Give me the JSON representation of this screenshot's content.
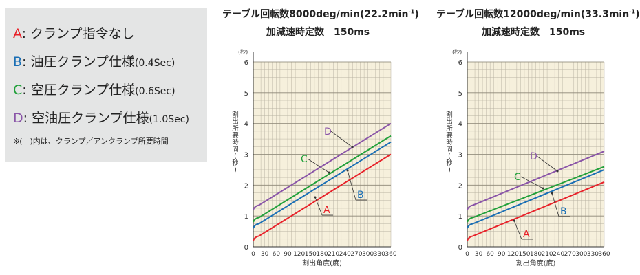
{
  "legend": {
    "items": [
      {
        "letter": "A",
        "text": ": クランプ指令なし",
        "spec": "",
        "color": "#e8222a"
      },
      {
        "letter": "B",
        "text": ": 油圧クランプ仕様",
        "spec": "(0.4Sec)",
        "color": "#1a6fb5"
      },
      {
        "letter": "C",
        "text": ": 空圧クランプ仕様",
        "spec": "(0.6Sec)",
        "color": "#21a03a"
      },
      {
        "letter": "D",
        "text": ": 空油圧クランプ仕様",
        "spec": "(1.0Sec)",
        "color": "#8a55a8"
      }
    ],
    "note": "※(　)内は、クランプ／アンクランプ所要時間"
  },
  "chart_data": [
    {
      "type": "line",
      "title_main": "テーブル回転数8000deg/min",
      "title_paren": "(22.2min",
      "title_sup": "-1",
      "title_close": ")",
      "subtitle": "加減速時定数　150ms",
      "xlabel": "割出角度(度)",
      "ylabel": "割出所要時間",
      "ylabel_unit": "(秒)",
      "y_unit_top": "(秒)",
      "xlim": [
        0,
        360
      ],
      "ylim": [
        0,
        6
      ],
      "xticks": [
        0,
        30,
        60,
        90,
        120,
        150,
        180,
        210,
        240,
        270,
        300,
        330,
        360
      ],
      "yticks": [
        0,
        1,
        2,
        3,
        4,
        5,
        6
      ],
      "grid": true,
      "series": [
        {
          "name": "A",
          "x": [
            0,
            15,
            360
          ],
          "values": [
            0.2,
            0.35,
            3.0
          ]
        },
        {
          "name": "B",
          "x": [
            0,
            15,
            360
          ],
          "values": [
            0.6,
            0.75,
            3.4
          ]
        },
        {
          "name": "C",
          "x": [
            0,
            15,
            360
          ],
          "values": [
            0.8,
            0.95,
            3.6
          ]
        },
        {
          "name": "D",
          "x": [
            0,
            15,
            360
          ],
          "values": [
            1.2,
            1.35,
            4.0
          ]
        }
      ]
    },
    {
      "type": "line",
      "title_main": "テーブル回転数12000deg/min",
      "title_paren": "(33.3min",
      "title_sup": "-1",
      "title_close": ")",
      "subtitle": "加減速時定数　150ms",
      "xlabel": "割出角度(度)",
      "ylabel": "割出所要時間",
      "ylabel_unit": "(秒)",
      "y_unit_top": "(秒)",
      "xlim": [
        0,
        360
      ],
      "ylim": [
        0,
        6
      ],
      "xticks": [
        0,
        30,
        60,
        90,
        120,
        150,
        180,
        210,
        240,
        270,
        300,
        330,
        360
      ],
      "yticks": [
        0,
        1,
        2,
        3,
        4,
        5,
        6
      ],
      "grid": true,
      "series": [
        {
          "name": "A",
          "x": [
            0,
            15,
            360
          ],
          "values": [
            0.2,
            0.35,
            2.1
          ]
        },
        {
          "name": "B",
          "x": [
            0,
            15,
            360
          ],
          "values": [
            0.6,
            0.75,
            2.5
          ]
        },
        {
          "name": "C",
          "x": [
            0,
            15,
            360
          ],
          "values": [
            0.8,
            0.95,
            2.6
          ]
        },
        {
          "name": "D",
          "x": [
            0,
            15,
            360
          ],
          "values": [
            1.2,
            1.35,
            3.1
          ]
        }
      ]
    }
  ]
}
